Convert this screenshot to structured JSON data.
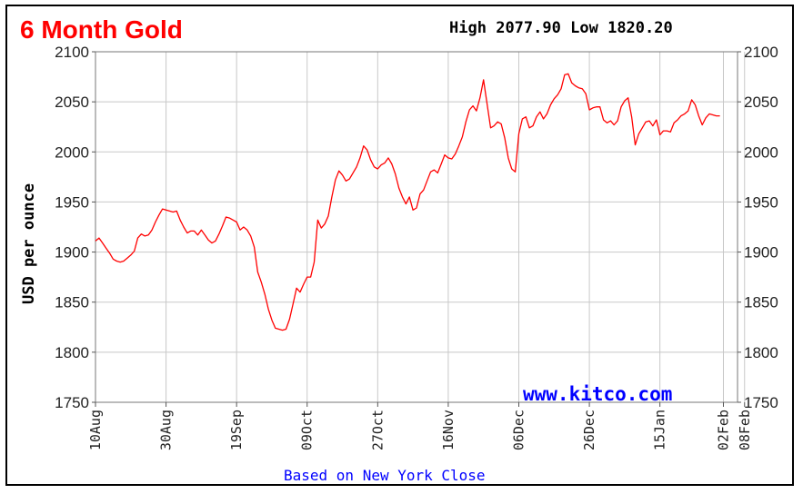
{
  "chart_data": {
    "type": "line",
    "title": "6 Month Gold",
    "high_label": "High",
    "high_value": "2077.90",
    "low_label": "Low",
    "low_value": "1820.20",
    "ylabel": "USD per ounce",
    "footnote": "Based on New York Close",
    "watermark": "www.kitco.com",
    "ylim": [
      1750,
      2100
    ],
    "yticks": [
      1750,
      1800,
      1850,
      1900,
      1950,
      2000,
      2050,
      2100
    ],
    "x_range_days": [
      0,
      182
    ],
    "xticks": [
      {
        "label": "10Aug",
        "day": 0
      },
      {
        "label": "30Aug",
        "day": 20
      },
      {
        "label": "19Sep",
        "day": 40
      },
      {
        "label": "09Oct",
        "day": 60
      },
      {
        "label": "27Oct",
        "day": 80
      },
      {
        "label": "16Nov",
        "day": 100
      },
      {
        "label": "06Dec",
        "day": 120
      },
      {
        "label": "26Dec",
        "day": 140
      },
      {
        "label": "15Jan",
        "day": 160
      },
      {
        "label": "02Feb",
        "day": 178
      },
      {
        "label": "08Feb",
        "day": 184
      }
    ],
    "grid": true,
    "series": [
      {
        "color": "#ff0000",
        "points": [
          [
            0,
            1911
          ],
          [
            1,
            1914
          ],
          [
            2,
            1909
          ],
          [
            3,
            1904
          ],
          [
            4,
            1899
          ],
          [
            5,
            1893
          ],
          [
            6,
            1891
          ],
          [
            7,
            1890
          ],
          [
            8,
            1891
          ],
          [
            9,
            1894
          ],
          [
            10,
            1897
          ],
          [
            11,
            1901
          ],
          [
            12,
            1914
          ],
          [
            13,
            1918
          ],
          [
            14,
            1916
          ],
          [
            15,
            1917
          ],
          [
            16,
            1922
          ],
          [
            17,
            1930
          ],
          [
            18,
            1937
          ],
          [
            19,
            1943
          ],
          [
            20,
            1942
          ],
          [
            21,
            1941
          ],
          [
            22,
            1940
          ],
          [
            23,
            1941
          ],
          [
            24,
            1932
          ],
          [
            25,
            1925
          ],
          [
            26,
            1919
          ],
          [
            27,
            1921
          ],
          [
            28,
            1921
          ],
          [
            29,
            1917
          ],
          [
            30,
            1922
          ],
          [
            31,
            1917
          ],
          [
            32,
            1912
          ],
          [
            33,
            1909
          ],
          [
            34,
            1911
          ],
          [
            35,
            1918
          ],
          [
            36,
            1926
          ],
          [
            37,
            1935
          ],
          [
            38,
            1934
          ],
          [
            39,
            1932
          ],
          [
            40,
            1930
          ],
          [
            41,
            1922
          ],
          [
            42,
            1925
          ],
          [
            43,
            1922
          ],
          [
            44,
            1916
          ],
          [
            45,
            1905
          ],
          [
            46,
            1880
          ],
          [
            47,
            1870
          ],
          [
            48,
            1858
          ],
          [
            49,
            1843
          ],
          [
            50,
            1832
          ],
          [
            51,
            1824
          ],
          [
            52,
            1823
          ],
          [
            53,
            1822
          ],
          [
            54,
            1823
          ],
          [
            55,
            1833
          ],
          [
            56,
            1848
          ],
          [
            57,
            1864
          ],
          [
            58,
            1860
          ],
          [
            59,
            1868
          ],
          [
            60,
            1875
          ],
          [
            61,
            1875
          ],
          [
            62,
            1890
          ],
          [
            63,
            1932
          ],
          [
            64,
            1924
          ],
          [
            65,
            1928
          ],
          [
            66,
            1936
          ],
          [
            67,
            1955
          ],
          [
            68,
            1972
          ],
          [
            69,
            1981
          ],
          [
            70,
            1977
          ],
          [
            71,
            1971
          ],
          [
            72,
            1973
          ],
          [
            73,
            1979
          ],
          [
            74,
            1985
          ],
          [
            75,
            1994
          ],
          [
            76,
            2006
          ],
          [
            77,
            2002
          ],
          [
            78,
            1992
          ],
          [
            79,
            1985
          ],
          [
            80,
            1983
          ],
          [
            81,
            1987
          ],
          [
            82,
            1989
          ],
          [
            83,
            1994
          ],
          [
            84,
            1988
          ],
          [
            85,
            1978
          ],
          [
            86,
            1964
          ],
          [
            87,
            1955
          ],
          [
            88,
            1948
          ],
          [
            89,
            1955
          ],
          [
            90,
            1942
          ],
          [
            91,
            1944
          ],
          [
            92,
            1958
          ],
          [
            93,
            1962
          ],
          [
            94,
            1971
          ],
          [
            95,
            1980
          ],
          [
            96,
            1982
          ],
          [
            97,
            1979
          ],
          [
            98,
            1988
          ],
          [
            99,
            1997
          ],
          [
            100,
            1994
          ],
          [
            101,
            1993
          ],
          [
            102,
            1998
          ],
          [
            103,
            2006
          ],
          [
            104,
            2015
          ],
          [
            105,
            2030
          ],
          [
            106,
            2042
          ],
          [
            107,
            2046
          ],
          [
            108,
            2041
          ],
          [
            109,
            2054
          ],
          [
            110,
            2072
          ],
          [
            111,
            2048
          ],
          [
            112,
            2024
          ],
          [
            113,
            2026
          ],
          [
            114,
            2030
          ],
          [
            115,
            2028
          ],
          [
            116,
            2014
          ],
          [
            117,
            1994
          ],
          [
            118,
            1983
          ],
          [
            119,
            1980
          ],
          [
            120,
            2018
          ],
          [
            121,
            2033
          ],
          [
            122,
            2035
          ],
          [
            123,
            2024
          ],
          [
            124,
            2026
          ],
          [
            125,
            2035
          ],
          [
            126,
            2040
          ],
          [
            127,
            2033
          ],
          [
            128,
            2038
          ],
          [
            129,
            2047
          ],
          [
            130,
            2053
          ],
          [
            131,
            2057
          ],
          [
            132,
            2063
          ],
          [
            133,
            2077
          ],
          [
            134,
            2078
          ],
          [
            135,
            2069
          ],
          [
            136,
            2066
          ],
          [
            137,
            2064
          ],
          [
            138,
            2063
          ],
          [
            139,
            2058
          ],
          [
            140,
            2042
          ],
          [
            141,
            2044
          ],
          [
            142,
            2045
          ],
          [
            143,
            2045
          ],
          [
            144,
            2032
          ],
          [
            145,
            2029
          ],
          [
            146,
            2031
          ],
          [
            147,
            2027
          ],
          [
            148,
            2031
          ],
          [
            149,
            2045
          ],
          [
            150,
            2051
          ],
          [
            151,
            2054
          ],
          [
            152,
            2035
          ],
          [
            153,
            2007
          ],
          [
            154,
            2018
          ],
          [
            155,
            2024
          ],
          [
            156,
            2030
          ],
          [
            157,
            2031
          ],
          [
            158,
            2026
          ],
          [
            159,
            2032
          ],
          [
            160,
            2017
          ],
          [
            161,
            2021
          ],
          [
            162,
            2021
          ],
          [
            163,
            2020
          ],
          [
            164,
            2029
          ],
          [
            165,
            2032
          ],
          [
            166,
            2036
          ],
          [
            167,
            2038
          ],
          [
            168,
            2041
          ],
          [
            169,
            2052
          ],
          [
            170,
            2047
          ],
          [
            171,
            2036
          ],
          [
            172,
            2027
          ],
          [
            173,
            2034
          ],
          [
            174,
            2038
          ],
          [
            175,
            2037
          ],
          [
            176,
            2036
          ],
          [
            177,
            2036
          ]
        ]
      }
    ],
    "colors": {
      "title": "#ff0000",
      "line": "#ff0000",
      "grid": "#c8c8c8",
      "watermark": "#0000ff",
      "footnote": "#0000ff"
    }
  }
}
